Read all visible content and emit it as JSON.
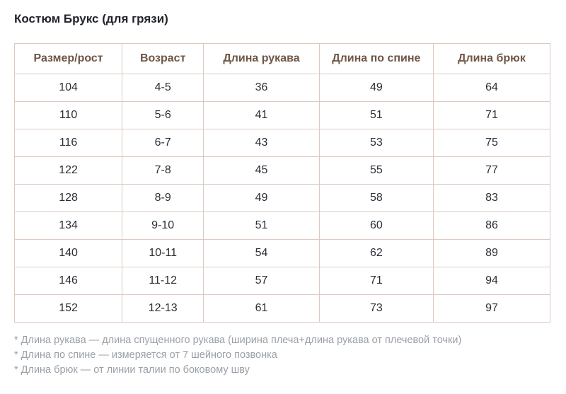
{
  "page": {
    "title": "Костюм Брукс (для грязи)"
  },
  "table": {
    "columns": [
      "Размер/рост",
      "Возраст",
      "Длина рукава",
      "Длина по спине",
      "Длина брюк"
    ],
    "rows": [
      [
        "104",
        "4-5",
        "36",
        "49",
        "64"
      ],
      [
        "110",
        "5-6",
        "41",
        "51",
        "71"
      ],
      [
        "116",
        "6-7",
        "43",
        "53",
        "75"
      ],
      [
        "122",
        "7-8",
        "45",
        "55",
        "77"
      ],
      [
        "128",
        "8-9",
        "49",
        "58",
        "83"
      ],
      [
        "134",
        "9-10",
        "51",
        "60",
        "86"
      ],
      [
        "140",
        "10-11",
        "54",
        "62",
        "89"
      ],
      [
        "146",
        "11-12",
        "57",
        "71",
        "94"
      ],
      [
        "152",
        "12-13",
        "61",
        "73",
        "97"
      ]
    ]
  },
  "footnotes": [
    "* Длина рукава — длина спущенного рукава (ширина плеча+длина рукава от плечевой точки)",
    "* Длина по спине — измеряется от 7 шейного позвонка",
    "* Длина брюк — от линии талии по боковому шву"
  ],
  "colors": {
    "header_text": "#6f5646",
    "border": "#ddc9c0",
    "body_text": "#2b2e35",
    "title_text": "#20232a",
    "footnote_text": "#9aa0a7"
  }
}
